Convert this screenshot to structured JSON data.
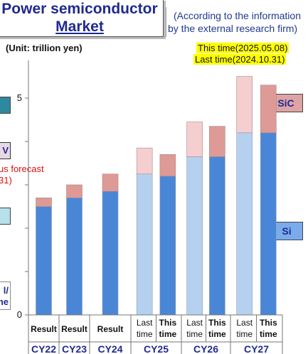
{
  "title": {
    "line1": "Power semiconductor",
    "line2": "Market"
  },
  "source_note": {
    "line1": "(According to the information",
    "line2": "by the external research firm)"
  },
  "unit": "(Unit: trillion yen)",
  "legend": {
    "this_time": "This time(2025.05.08)",
    "last_time": "Last time(2024.10.31)"
  },
  "labels": {
    "sic": "SiC",
    "si": "Si"
  },
  "left_partial": {
    "v": "V",
    "forecast": "us forecast",
    "date": "31)",
    "l_slash": "l/",
    "ne": "ne"
  },
  "colors": {
    "si_this": "#4a86d6",
    "si_last": "#b6d1f0",
    "sic_this": "#de9a96",
    "sic_last": "#f5cfd0",
    "highlight": "#ffff00",
    "title_blue": "#1f2a8f"
  },
  "chart_data": {
    "type": "bar",
    "stacked": true,
    "y_tick_labels": [
      "0",
      "5"
    ],
    "ylim": [
      0,
      6
    ],
    "groups": [
      {
        "cy": "CY22",
        "bars": [
          {
            "label": "Result",
            "si": 2.5,
            "sic": 0.2
          }
        ]
      },
      {
        "cy": "CY23",
        "bars": [
          {
            "label": "Result",
            "si": 2.7,
            "sic": 0.3
          }
        ]
      },
      {
        "cy": "CY24",
        "bars": [
          {
            "label": "Result",
            "si": 2.85,
            "sic": 0.4
          }
        ]
      },
      {
        "cy": "CY25",
        "bars": [
          {
            "label": "Last time",
            "si": 3.25,
            "sic": 0.6
          },
          {
            "label": "This time",
            "si": 3.2,
            "sic": 0.5
          }
        ]
      },
      {
        "cy": "CY26",
        "bars": [
          {
            "label": "Last time",
            "si": 3.65,
            "sic": 0.8
          },
          {
            "label": "This time",
            "si": 3.65,
            "sic": 0.7
          }
        ]
      },
      {
        "cy": "CY27",
        "bars": [
          {
            "label": "Last time",
            "si": 4.2,
            "sic": 1.3
          },
          {
            "label": "This time",
            "si": 4.2,
            "sic": 1.1
          }
        ]
      }
    ]
  }
}
